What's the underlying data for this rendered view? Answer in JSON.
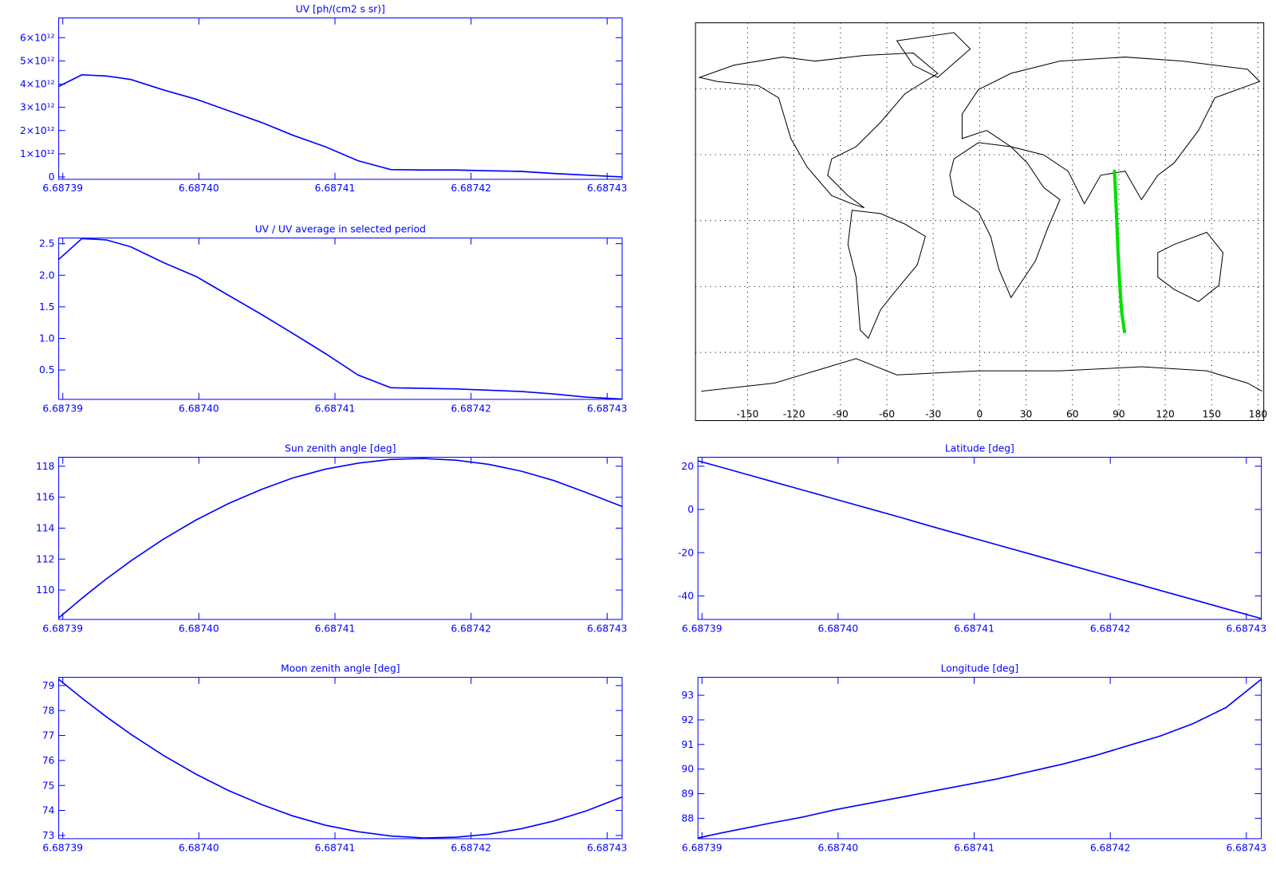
{
  "chart_data": [
    {
      "type": "line",
      "title": "UV [ph/(cm2 s sr)]",
      "color": "#0000ff",
      "x": [
        6.6873897,
        6.6873914,
        6.6873932,
        6.687395,
        6.6873974,
        6.6873998,
        6.6874022,
        6.6874046,
        6.6874069,
        6.6874093,
        6.6874117,
        6.6874141,
        6.6874165,
        6.6874189,
        6.6874213,
        6.6874237,
        6.6874261,
        6.6874285,
        6.6874311
      ],
      "values": [
        3900000000000,
        4400000000000,
        4350000000000,
        4200000000000,
        3750000000000,
        3350000000000,
        2850000000000,
        2350000000000,
        1800000000000,
        1300000000000,
        700000000000,
        320000000000,
        300000000000,
        300000000000,
        270000000000,
        240000000000,
        150000000000,
        80000000000,
        0
      ],
      "xlim": [
        6.6873897,
        6.6874311
      ],
      "ylim": [
        -100000000000,
        6850000000000
      ],
      "xticks": [
        6.68739,
        {
          "value": 6.6874,
          "label": "6.68740"
        },
        6.68741,
        6.68742,
        6.68743
      ],
      "yticks": [
        0,
        {
          "value": 1000000000000,
          "label": "1×10¹²"
        },
        {
          "value": 2000000000000,
          "label": "2×10¹²"
        },
        {
          "value": 3000000000000,
          "label": "3×10¹²"
        },
        {
          "value": 4000000000000,
          "label": "4×10¹²"
        },
        {
          "value": 5000000000000,
          "label": "5×10¹²"
        },
        {
          "value": 6000000000000,
          "label": "6×10¹²"
        }
      ]
    },
    {
      "type": "line",
      "title": "UV / UV average in selected period",
      "color": "#0000ff",
      "x": [
        6.6873897,
        6.6873914,
        6.6873932,
        6.687395,
        6.6873974,
        6.6873998,
        6.6874022,
        6.6874046,
        6.6874069,
        6.6874093,
        6.6874117,
        6.6874141,
        6.6874165,
        6.6874189,
        6.6874213,
        6.6874237,
        6.6874261,
        6.6874285,
        6.6874311
      ],
      "values": [
        2.25,
        2.58,
        2.56,
        2.45,
        2.2,
        1.98,
        1.68,
        1.38,
        1.08,
        0.76,
        0.42,
        0.22,
        0.21,
        0.2,
        0.18,
        0.16,
        0.12,
        0.07,
        0.04
      ],
      "xlim": [
        6.6873897,
        6.6874311
      ],
      "ylim": [
        0.035,
        2.59
      ],
      "xticks": [
        6.68739,
        {
          "value": 6.6874,
          "label": "6.68740"
        },
        6.68741,
        6.68742,
        6.68743
      ],
      "yticks": [
        0.5,
        {
          "value": 1,
          "label": "1.0"
        },
        1.5,
        {
          "value": 2,
          "label": "2.0"
        },
        2.5
      ]
    },
    {
      "type": "map",
      "grid": true,
      "series": [
        {
          "color": "#00e000",
          "x": [
            87.2,
            88.35,
            89.35,
            90.55,
            91.85,
            93.65
          ],
          "values": [
            22.5,
            4.75,
            -12.15,
            -29.06,
            -41.73,
            -50.5
          ]
        }
      ],
      "xlim": [
        -183.7,
        183.7
      ],
      "ylim": [
        -91,
        90
      ],
      "xticks": [
        -150,
        -120,
        -90,
        -60,
        -30,
        0,
        30,
        60,
        90,
        120,
        150,
        180
      ],
      "yticks": [
        -60,
        -30,
        0,
        30,
        60
      ]
    },
    {
      "type": "line",
      "title": "Sun zenith angle [deg]",
      "color": "#0000ff",
      "x": [
        6.6873897,
        6.6873914,
        6.6873932,
        6.687395,
        6.6873974,
        6.6873998,
        6.6874022,
        6.6874046,
        6.6874069,
        6.6874093,
        6.6874117,
        6.6874141,
        6.6874165,
        6.6874189,
        6.6874213,
        6.6874237,
        6.6874261,
        6.6874285,
        6.6874311
      ],
      "values": [
        108.2,
        109.46,
        110.72,
        111.88,
        113.29,
        114.53,
        115.6,
        116.5,
        117.24,
        117.81,
        118.2,
        118.44,
        118.5,
        118.39,
        118.12,
        117.68,
        117.07,
        116.29,
        115.4
      ],
      "xlim": [
        6.6873897,
        6.6874311
      ],
      "ylim": [
        108.1,
        118.58
      ],
      "xticks": [
        6.68739,
        {
          "value": 6.6874,
          "label": "6.68740"
        },
        6.68741,
        6.68742,
        6.68743
      ],
      "yticks": [
        110,
        112,
        114,
        116,
        118
      ]
    },
    {
      "type": "line",
      "title": "Latitude [deg]",
      "color": "#0000ff",
      "x": [
        6.6873897,
        6.6873914,
        6.6873932,
        6.687395,
        6.6873974,
        6.6873998,
        6.6874022,
        6.6874046,
        6.6874069,
        6.6874093,
        6.6874117,
        6.6874141,
        6.6874165,
        6.6874189,
        6.6874213,
        6.6874237,
        6.6874261,
        6.6874285,
        6.6874311
      ],
      "values": [
        22.5,
        19.54,
        16.37,
        13.2,
        8.98,
        4.75,
        0.53,
        -3.7,
        -7.93,
        -12.15,
        -16.38,
        -20.6,
        -24.83,
        -29.06,
        -33.28,
        -37.51,
        -41.73,
        -45.96,
        -50.5
      ],
      "xlim": [
        6.6873897,
        6.6874311
      ],
      "ylim": [
        -50.9,
        24.15
      ],
      "xticks": [
        6.68739,
        {
          "value": 6.6874,
          "label": "6.68740"
        },
        6.68741,
        6.68742,
        6.68743
      ],
      "yticks": [
        -40,
        -20,
        0,
        20
      ]
    },
    {
      "type": "line",
      "title": "Moon zenith angle [deg]",
      "color": "#0000ff",
      "x": [
        6.6873897,
        6.6873914,
        6.6873932,
        6.687395,
        6.6873974,
        6.6873998,
        6.6874022,
        6.6874046,
        6.6874069,
        6.6874093,
        6.6874117,
        6.6874141,
        6.6874165,
        6.6874189,
        6.6874213,
        6.6874237,
        6.6874261,
        6.6874285,
        6.6874311
      ],
      "values": [
        79.25,
        78.5,
        77.75,
        77.05,
        76.2,
        75.45,
        74.79,
        74.24,
        73.78,
        73.41,
        73.15,
        72.98,
        72.9,
        72.93,
        73.05,
        73.27,
        73.58,
        73.99,
        74.54
      ],
      "xlim": [
        6.6873897,
        6.6874311
      ],
      "ylim": [
        72.87,
        79.33
      ],
      "xticks": [
        6.68739,
        {
          "value": 6.6874,
          "label": "6.68740"
        },
        6.68741,
        6.68742,
        6.68743
      ],
      "yticks": [
        73,
        74,
        75,
        76,
        77,
        78,
        79
      ]
    },
    {
      "type": "line",
      "title": "Longitude [deg]",
      "color": "#0000ff",
      "x": [
        6.6873897,
        6.6873914,
        6.6873932,
        6.687395,
        6.6873974,
        6.6873998,
        6.6874022,
        6.6874046,
        6.6874069,
        6.6874093,
        6.6874117,
        6.6874141,
        6.6874165,
        6.6874189,
        6.6874213,
        6.6874237,
        6.6874261,
        6.6874285,
        6.6874311
      ],
      "values": [
        87.2,
        87.4,
        87.6,
        87.8,
        88.05,
        88.35,
        88.6,
        88.85,
        89.1,
        89.35,
        89.6,
        89.9,
        90.2,
        90.55,
        90.95,
        91.35,
        91.85,
        92.5,
        93.65
      ],
      "xlim": [
        6.6873897,
        6.6874311
      ],
      "ylim": [
        87.17,
        93.73
      ],
      "xticks": [
        6.68739,
        {
          "value": 6.6874,
          "label": "6.68740"
        },
        6.68741,
        6.68742,
        6.68743
      ],
      "yticks": [
        88,
        89,
        90,
        91,
        92,
        93
      ]
    }
  ]
}
